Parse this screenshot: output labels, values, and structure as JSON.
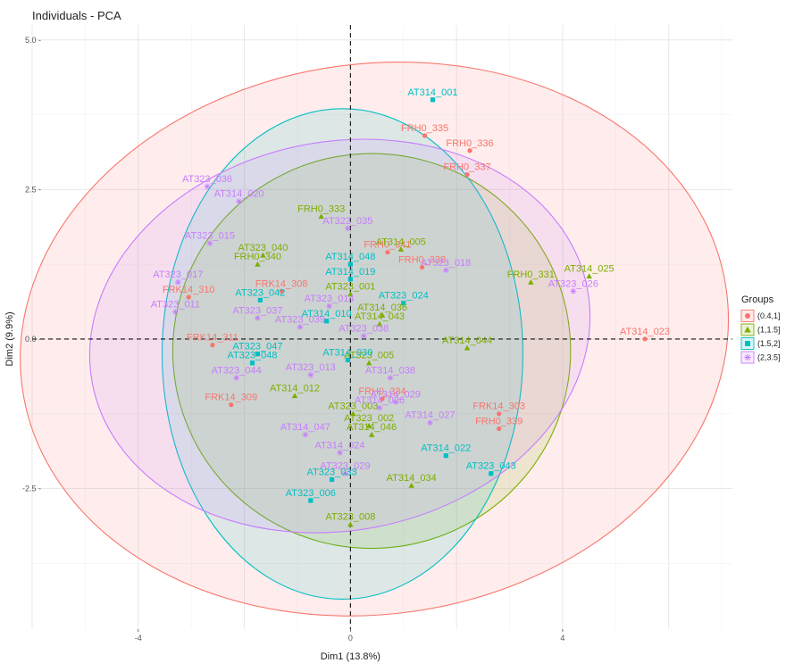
{
  "chart_data": {
    "type": "scatter",
    "title": "Individuals - PCA",
    "xlabel": "Dim1 (13.8%)",
    "ylabel": "Dim2 (9.9%)",
    "xlim": [
      -6.0,
      7.2
    ],
    "ylim": [
      -4.85,
      5.25
    ],
    "x_ticks": [
      -4,
      0,
      4
    ],
    "y_ticks": [
      -2.5,
      0.0,
      2.5,
      5.0
    ],
    "x_tick_labels": [
      "-4",
      "0",
      "4"
    ],
    "y_tick_labels": [
      "-2.5 -",
      "0.0 -",
      "2.5 -",
      "5.0 -"
    ],
    "grid": true,
    "reference_lines": {
      "x": 0,
      "y": 0,
      "style": "dashed"
    },
    "legend": {
      "title": "Groups",
      "placement": "right"
    },
    "groups": [
      {
        "name": "(0.4,1]",
        "color": "#F8766D",
        "marker": "circle",
        "ellipse": {
          "cx": 0.45,
          "cy": 0.0,
          "rx": 6.7,
          "ry": 4.6,
          "angle": -8
        },
        "points": [
          {
            "x": 2.25,
            "y": 3.15,
            "label": "FRH0_336"
          },
          {
            "x": 1.4,
            "y": 3.4,
            "label": "FRH0_335"
          },
          {
            "x": 2.2,
            "y": 2.75,
            "label": "FRH0_337"
          },
          {
            "x": 0.7,
            "y": 1.45,
            "label": "FRH0_341"
          },
          {
            "x": 1.35,
            "y": 1.2,
            "label": "FRH0_338"
          },
          {
            "x": -1.3,
            "y": 0.8,
            "label": "FRK14_308"
          },
          {
            "x": -3.05,
            "y": 0.7,
            "label": "FRK14_310"
          },
          {
            "x": -2.6,
            "y": -0.1,
            "label": "FRK14_311"
          },
          {
            "x": -2.25,
            "y": -1.1,
            "label": "FRK14_309"
          },
          {
            "x": 0.6,
            "y": -1.0,
            "label": "FRH0_334"
          },
          {
            "x": 2.8,
            "y": -1.25,
            "label": "FRK14_303"
          },
          {
            "x": 2.8,
            "y": -1.5,
            "label": "FRH0_339"
          },
          {
            "x": 5.55,
            "y": 0.0,
            "label": "AT314_023"
          }
        ]
      },
      {
        "name": "(1,1.5]",
        "color": "#7CAE00",
        "marker": "triangle",
        "ellipse": {
          "cx": 0.4,
          "cy": -0.2,
          "rx": 3.75,
          "ry": 3.3,
          "angle": -5
        },
        "points": [
          {
            "x": -0.55,
            "y": 2.05,
            "label": "FRH0_333"
          },
          {
            "x": 0.95,
            "y": 1.5,
            "label": "AT314_005"
          },
          {
            "x": -1.65,
            "y": 1.4,
            "label": "AT323_040"
          },
          {
            "x": -1.75,
            "y": 1.25,
            "label": "FRH0_340"
          },
          {
            "x": 3.4,
            "y": 0.95,
            "label": "FRH0_331"
          },
          {
            "x": 4.5,
            "y": 1.05,
            "label": "AT314_025"
          },
          {
            "x": 0.0,
            "y": 0.75,
            "label": "AT323_001"
          },
          {
            "x": 0.6,
            "y": 0.4,
            "label": "AT314_036"
          },
          {
            "x": 0.55,
            "y": 0.25,
            "label": "AT314_043"
          },
          {
            "x": 2.2,
            "y": -0.15,
            "label": "AT314_044"
          },
          {
            "x": 0.35,
            "y": -0.4,
            "label": "AT323_005"
          },
          {
            "x": -1.05,
            "y": -0.95,
            "label": "AT314_012"
          },
          {
            "x": 0.05,
            "y": -1.25,
            "label": "AT323_003"
          },
          {
            "x": 0.35,
            "y": -1.45,
            "label": "AT323_002"
          },
          {
            "x": 0.4,
            "y": -1.6,
            "label": "AT314_046"
          },
          {
            "x": 1.15,
            "y": -2.45,
            "label": "AT314_034"
          },
          {
            "x": 0.0,
            "y": -3.1,
            "label": "AT323_008"
          }
        ]
      },
      {
        "name": "(1.5,2]",
        "color": "#00BFC4",
        "marker": "square",
        "ellipse": {
          "cx": -0.15,
          "cy": -0.25,
          "rx": 3.4,
          "ry": 4.1,
          "angle": 0
        },
        "points": [
          {
            "x": 1.55,
            "y": 4.0,
            "label": "AT314_001"
          },
          {
            "x": 0.0,
            "y": 1.25,
            "label": "AT314_048"
          },
          {
            "x": 0.0,
            "y": 1.0,
            "label": "AT314_019"
          },
          {
            "x": -1.7,
            "y": 0.65,
            "label": "AT323_042"
          },
          {
            "x": 1.0,
            "y": 0.6,
            "label": "AT323_024"
          },
          {
            "x": -0.45,
            "y": 0.3,
            "label": "AT314_010"
          },
          {
            "x": -1.75,
            "y": -0.25,
            "label": "AT323_047"
          },
          {
            "x": -1.85,
            "y": -0.4,
            "label": "AT323_048"
          },
          {
            "x": -0.05,
            "y": -0.35,
            "label": "AT314_030"
          },
          {
            "x": 1.8,
            "y": -1.95,
            "label": "AT314_022"
          },
          {
            "x": -0.35,
            "y": -2.35,
            "label": "AT323_033"
          },
          {
            "x": -0.75,
            "y": -2.7,
            "label": "AT323_006"
          },
          {
            "x": 2.65,
            "y": -2.25,
            "label": "AT323_043"
          }
        ]
      },
      {
        "name": "(2,3.5]",
        "color": "#C77CFF",
        "marker": "asterisk",
        "ellipse": {
          "cx": -0.2,
          "cy": 0.05,
          "rx": 4.75,
          "ry": 3.25,
          "angle": -11
        },
        "points": [
          {
            "x": -2.7,
            "y": 2.55,
            "label": "AT323_036"
          },
          {
            "x": -2.1,
            "y": 2.3,
            "label": "AT314_020"
          },
          {
            "x": -0.05,
            "y": 1.85,
            "label": "AT323_035"
          },
          {
            "x": -2.65,
            "y": 1.6,
            "label": "AT323_015"
          },
          {
            "x": 1.8,
            "y": 1.15,
            "label": "AT323_018"
          },
          {
            "x": -3.25,
            "y": 0.95,
            "label": "AT323_017"
          },
          {
            "x": 4.2,
            "y": 0.8,
            "label": "AT323_026"
          },
          {
            "x": -3.3,
            "y": 0.45,
            "label": "AT323_011"
          },
          {
            "x": -1.75,
            "y": 0.35,
            "label": "AT323_037"
          },
          {
            "x": -0.4,
            "y": 0.55,
            "label": "AT323_014"
          },
          {
            "x": -0.95,
            "y": 0.2,
            "label": "AT323_039"
          },
          {
            "x": 0.25,
            "y": 0.05,
            "label": "AT323_038"
          },
          {
            "x": -2.15,
            "y": -0.65,
            "label": "AT323_044"
          },
          {
            "x": 0.75,
            "y": -0.65,
            "label": "AT314_038"
          },
          {
            "x": 0.85,
            "y": -1.05,
            "label": "AT314_029"
          },
          {
            "x": 1.5,
            "y": -1.4,
            "label": "AT314_027"
          },
          {
            "x": 0.55,
            "y": -1.15,
            "label": "AT314_026"
          },
          {
            "x": -0.85,
            "y": -1.6,
            "label": "AT314_047"
          },
          {
            "x": -0.2,
            "y": -1.9,
            "label": "AT314_024"
          },
          {
            "x": -0.1,
            "y": -2.25,
            "label": "AT323_029"
          },
          {
            "x": -0.75,
            "y": -0.6,
            "label": "AT323_013"
          }
        ]
      }
    ]
  }
}
